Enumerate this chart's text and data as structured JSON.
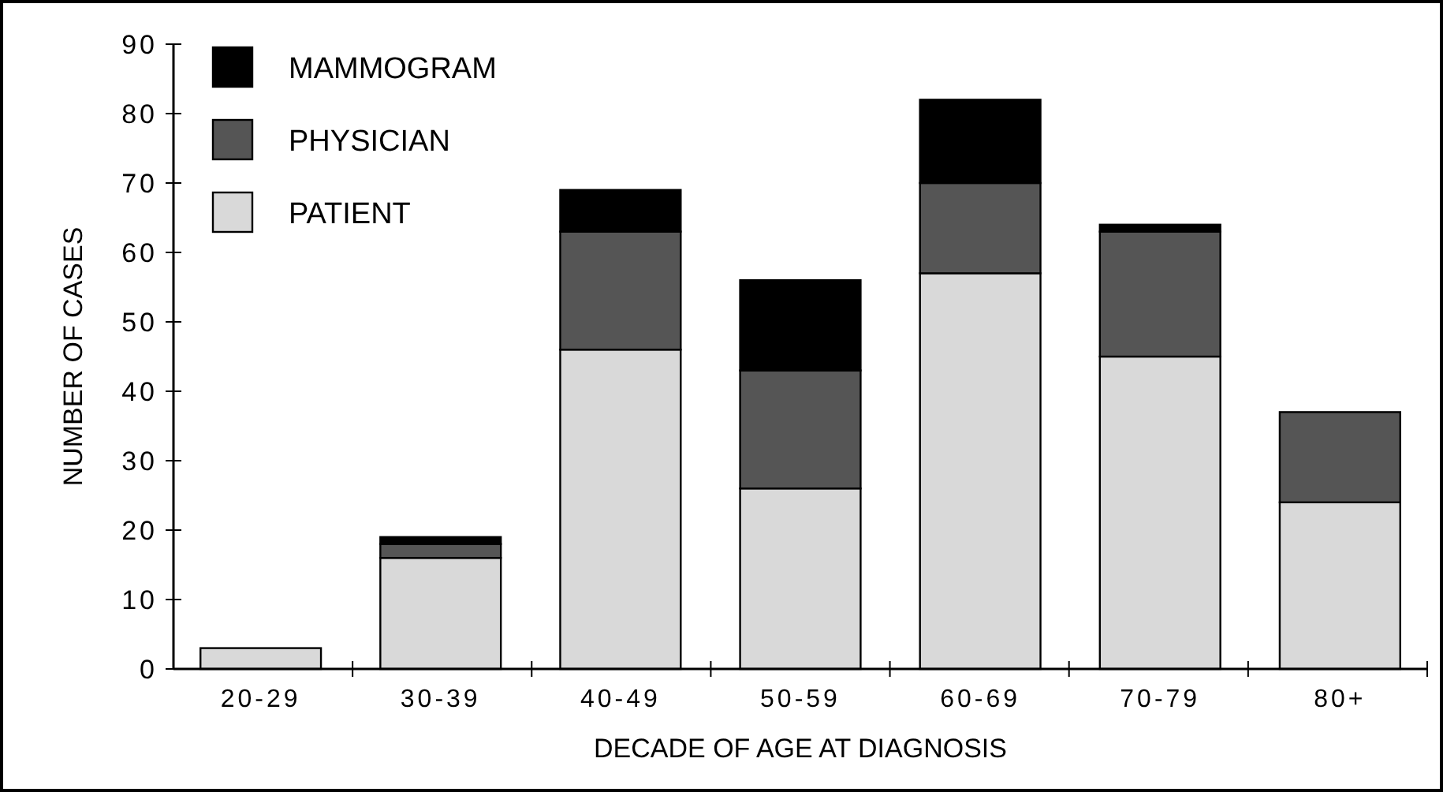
{
  "chart_data": {
    "type": "bar",
    "stacked": true,
    "xlabel": "DECADE OF AGE AT DIAGNOSIS",
    "ylabel": "NUMBER OF CASES",
    "categories": [
      "20-29",
      "30-39",
      "40-49",
      "50-59",
      "60-69",
      "70-79",
      "80+"
    ],
    "series": [
      {
        "name": "PATIENT",
        "color": "#d9d9d9",
        "values": [
          3,
          16,
          46,
          26,
          57,
          45,
          24
        ]
      },
      {
        "name": "PHYSICIAN",
        "color": "#555555",
        "values": [
          0,
          2,
          17,
          17,
          13,
          18,
          13
        ]
      },
      {
        "name": "MAMMOGRAM",
        "color": "#000000",
        "values": [
          0,
          1,
          6,
          13,
          12,
          1,
          0
        ]
      }
    ],
    "ylim": [
      0,
      90
    ],
    "yticks": [
      0,
      10,
      20,
      30,
      40,
      50,
      60,
      70,
      80,
      90
    ],
    "grid": false,
    "legend": "top left"
  }
}
